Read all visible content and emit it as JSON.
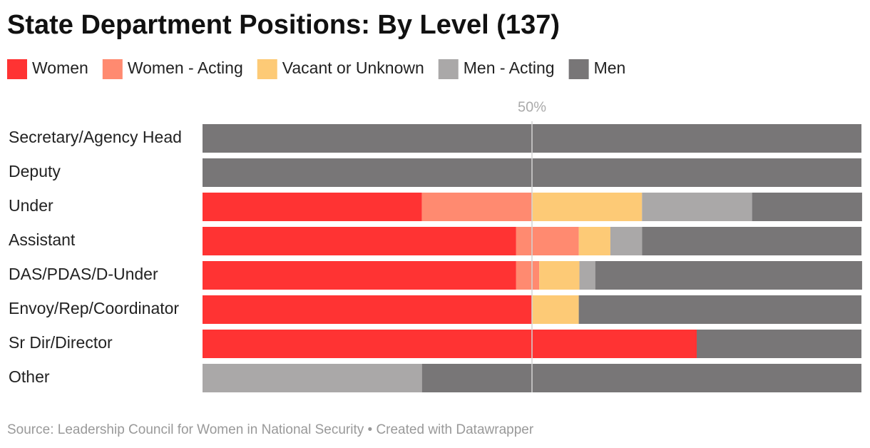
{
  "chart_data": {
    "type": "stacked-bar-horizontal",
    "title": "State Department Positions: By Level (137)",
    "source": "Source: Leadership Council for Women in National Security • Created with Datawrapper",
    "categories": [
      "Secretary/Agency Head",
      "Deputy",
      "Under",
      "Assistant",
      "DAS/PDAS/D-Under",
      "Envoy/Rep/Coordinator",
      "Sr Dir/Director",
      "Other"
    ],
    "series": [
      {
        "name": "Women",
        "color": "#ff3333",
        "values": [
          0,
          0,
          33.3,
          47.6,
          47.6,
          50,
          75,
          0
        ]
      },
      {
        "name": "Women - Acting",
        "color": "#ff8a70",
        "values": [
          0,
          0,
          16.7,
          9.5,
          3.5,
          0,
          0,
          0
        ]
      },
      {
        "name": "Vacant or Unknown",
        "color": "#fdca76",
        "values": [
          0,
          0,
          16.7,
          4.8,
          6.1,
          7.1,
          0,
          0
        ]
      },
      {
        "name": "Men - Acting",
        "color": "#aaa8a8",
        "values": [
          0,
          0,
          16.7,
          4.8,
          2.4,
          0,
          0,
          33.3
        ]
      },
      {
        "name": "Men",
        "color": "#787677",
        "values": [
          100,
          100,
          16.7,
          33.3,
          40.5,
          42.9,
          25,
          66.7
        ]
      }
    ],
    "xlim": [
      0,
      100
    ],
    "xticks": [
      {
        "value": 50,
        "label": "50%"
      }
    ]
  }
}
